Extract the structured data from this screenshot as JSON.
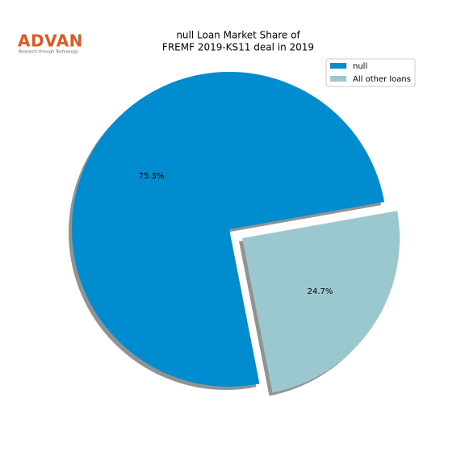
{
  "logo": {
    "name": "ADVAN",
    "tagline": "Research through Technology"
  },
  "chart_data": {
    "type": "pie",
    "title": [
      "null Loan Market Share of",
      "FREMF 2019-KS11 deal in 2019"
    ],
    "categories": [
      "null",
      "All other loans"
    ],
    "values": [
      75.3,
      24.7
    ],
    "value_labels": [
      "75.3%",
      "24.7%"
    ],
    "colors": [
      "#008ccf",
      "#9bc7cf"
    ],
    "startangle": 10,
    "explode": [
      0,
      0.1
    ],
    "shadow": true,
    "legend": "upper right"
  }
}
